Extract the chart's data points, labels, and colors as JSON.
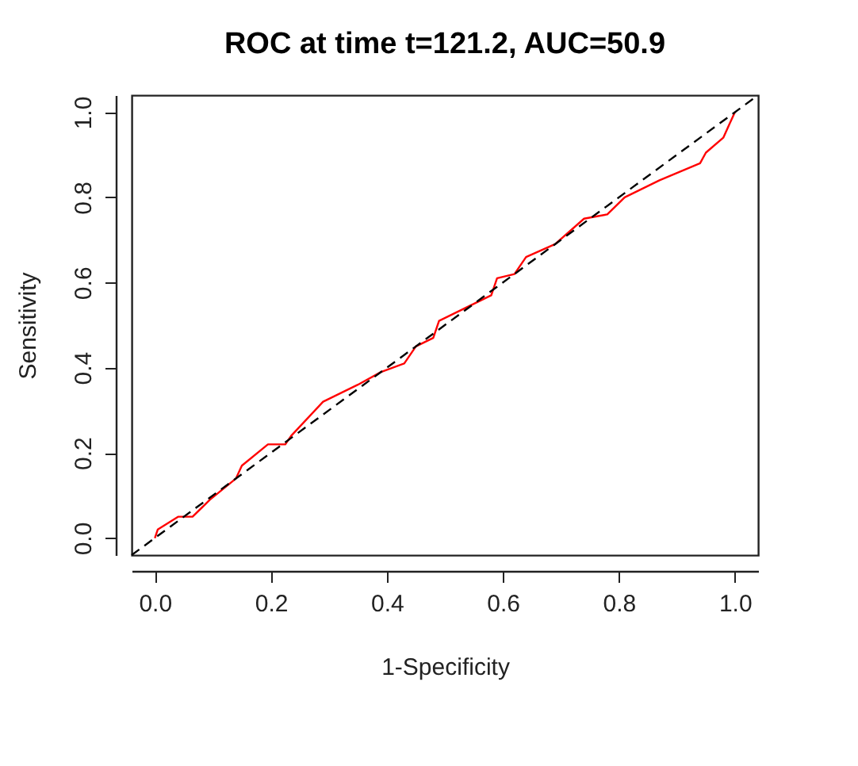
{
  "chart_data": {
    "type": "line",
    "title": "ROC at time t=121.2, AUC=50.9",
    "xlabel": "1-Specificity",
    "ylabel": "Sensitivity",
    "xlim": [
      -0.04,
      1.04
    ],
    "ylim": [
      -0.04,
      1.04
    ],
    "xticks": [
      {
        "value": 0,
        "label": "0.0"
      },
      0.2,
      0.4,
      0.6,
      0.8,
      {
        "value": 1,
        "label": "1.0"
      }
    ],
    "yticks": [
      {
        "value": 0,
        "label": "0.0"
      },
      0.2,
      0.4,
      0.6,
      0.8,
      {
        "value": 1,
        "label": "1.0"
      }
    ],
    "grid": false,
    "series": [
      {
        "color": "#ff0000",
        "line_style": "solid",
        "x": [
          0,
          0.005,
          0.04,
          0.065,
          0.095,
          0.14,
          0.15,
          0.195,
          0.225,
          0.235,
          0.29,
          0.35,
          0.39,
          0.43,
          0.45,
          0.48,
          0.49,
          0.55,
          0.58,
          0.59,
          0.62,
          0.64,
          0.69,
          0.74,
          0.78,
          0.81,
          0.87,
          0.905,
          0.94,
          0.95,
          0.98,
          0.99,
          1
        ],
        "values": [
          0,
          0.02,
          0.05,
          0.05,
          0.09,
          0.14,
          0.17,
          0.22,
          0.22,
          0.24,
          0.32,
          0.36,
          0.39,
          0.41,
          0.45,
          0.47,
          0.51,
          0.55,
          0.57,
          0.61,
          0.62,
          0.66,
          0.69,
          0.75,
          0.76,
          0.8,
          0.84,
          0.86,
          0.88,
          0.905,
          0.94,
          0.97,
          1
        ]
      },
      {
        "color": "#000000",
        "line_style": "dashed",
        "x": [
          -0.04,
          1.04
        ],
        "values": [
          -0.04,
          1.04
        ]
      }
    ]
  }
}
